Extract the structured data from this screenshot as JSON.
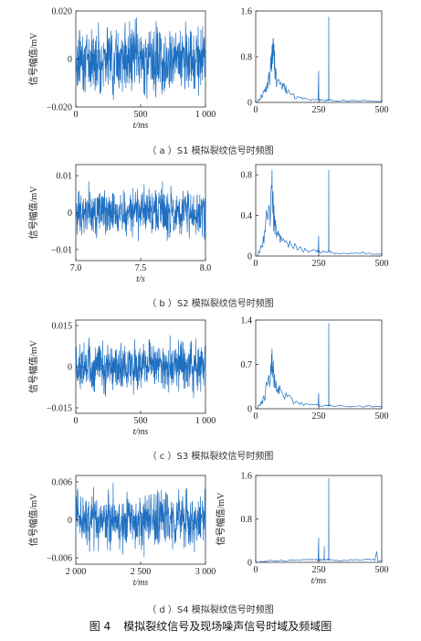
{
  "figure_caption": {
    "number": "图 4",
    "text": "模拟裂纹信号及现场噪声信号时域及频域图"
  },
  "subcaptions": [
    "（ a ）S1 模拟裂纹信号时频图",
    "（ b ）S2 模拟裂纹信号时频图",
    "（ c ）S3 模拟裂纹信号时频图",
    "（ d ）S4 模拟裂纹信号时频图"
  ],
  "colors": {
    "signal": "#1f6fc1",
    "axis": "#333333"
  },
  "chart_data": [
    {
      "id": "S1-time",
      "type": "line",
      "signal": "noise",
      "xlabel": "t/ms",
      "ylabel": "信号幅值/mV",
      "xlim": [
        0,
        1000
      ],
      "ylim": [
        -0.02,
        0.02
      ],
      "xticks": [
        0,
        500,
        1000
      ],
      "xticklabels": [
        "0",
        "500",
        "1 000"
      ],
      "yticks": [
        -0.02,
        0,
        0.02
      ],
      "yticklabels": [
        "−0.020",
        "0",
        "0.020"
      ],
      "amplitude": 0.012,
      "n": 600
    },
    {
      "id": "S1-freq",
      "type": "line",
      "signal": "spectrum",
      "xlabel": "",
      "ylabel": "",
      "xlim": [
        0,
        500
      ],
      "ylim": [
        0,
        1.6
      ],
      "xticks": [
        0,
        250,
        500
      ],
      "xticklabels": [
        "0",
        "250",
        "500"
      ],
      "yticks": [
        0,
        0.8,
        1.6
      ],
      "yticklabels": [
        "0",
        "0.8",
        "1.6"
      ],
      "x": [
        0,
        10,
        20,
        30,
        40,
        50,
        60,
        65,
        70,
        75,
        80,
        90,
        100,
        110,
        120,
        130,
        150,
        170,
        190,
        210,
        240,
        250,
        252,
        254,
        260,
        280,
        288,
        290,
        292,
        300,
        350,
        400,
        450,
        500
      ],
      "y": [
        0,
        0.05,
        0.12,
        0.2,
        0.28,
        0.45,
        0.8,
        1.0,
        1.12,
        0.9,
        0.6,
        0.4,
        0.35,
        0.28,
        0.3,
        0.22,
        0.15,
        0.1,
        0.08,
        0.06,
        0.05,
        0.55,
        0.05,
        0.05,
        0.04,
        0.04,
        0.05,
        1.5,
        0.05,
        0.04,
        0.04,
        0.03,
        0.03,
        0.02
      ]
    },
    {
      "id": "S2-time",
      "type": "line",
      "signal": "noise",
      "xlabel": "t/s",
      "ylabel": "信号幅值/mV",
      "xlim": [
        7.0,
        8.0
      ],
      "ylim": [
        -0.013,
        0.013
      ],
      "xticks": [
        7.0,
        7.5,
        8.0
      ],
      "xticklabels": [
        "7.0",
        "7.5",
        "8.0"
      ],
      "yticks": [
        -0.01,
        0,
        0.01
      ],
      "yticklabels": [
        "−0.01",
        "0",
        "0.01"
      ],
      "amplitude": 0.006,
      "n": 600
    },
    {
      "id": "S2-freq",
      "type": "line",
      "signal": "spectrum",
      "xlabel": "",
      "ylabel": "",
      "xlim": [
        0,
        500
      ],
      "ylim": [
        0,
        0.9
      ],
      "xticks": [
        0,
        250,
        500
      ],
      "xticklabels": [
        "0",
        "250",
        "500"
      ],
      "yticks": [
        0,
        0.4,
        0.8
      ],
      "yticklabels": [
        "0",
        "0.4",
        "0.8"
      ],
      "x": [
        0,
        10,
        20,
        30,
        40,
        50,
        60,
        65,
        70,
        75,
        80,
        90,
        100,
        120,
        140,
        160,
        180,
        200,
        240,
        250,
        252,
        254,
        280,
        288,
        290,
        292,
        300,
        350,
        400,
        450,
        500
      ],
      "y": [
        0,
        0.04,
        0.1,
        0.2,
        0.35,
        0.45,
        0.6,
        0.85,
        0.5,
        0.4,
        0.3,
        0.25,
        0.2,
        0.15,
        0.12,
        0.1,
        0.08,
        0.06,
        0.05,
        0.2,
        0.05,
        0.04,
        0.04,
        0.05,
        0.85,
        0.05,
        0.04,
        0.03,
        0.03,
        0.03,
        0.02
      ]
    },
    {
      "id": "S3-time",
      "type": "line",
      "signal": "noise",
      "xlabel": "t/ms",
      "ylabel": "信号幅值/mV",
      "xlim": [
        0,
        1000
      ],
      "ylim": [
        -0.017,
        0.017
      ],
      "xticks": [
        0,
        500,
        1000
      ],
      "xticklabels": [
        "0",
        "500",
        "1 000"
      ],
      "yticks": [
        -0.015,
        0,
        0.015
      ],
      "yticklabels": [
        "−0.015",
        "0",
        "0.015"
      ],
      "amplitude": 0.008,
      "n": 600
    },
    {
      "id": "S3-freq",
      "type": "line",
      "signal": "spectrum",
      "xlabel": "",
      "ylabel": "",
      "xlim": [
        0,
        500
      ],
      "ylim": [
        0,
        1.4
      ],
      "xticks": [
        0,
        250,
        500
      ],
      "xticklabels": [
        "0",
        "250",
        "500"
      ],
      "yticks": [
        0,
        0.7,
        1.4
      ],
      "yticklabels": [
        "0",
        "0.7",
        "1.4"
      ],
      "x": [
        0,
        10,
        20,
        30,
        40,
        50,
        60,
        65,
        70,
        75,
        80,
        90,
        100,
        120,
        140,
        160,
        180,
        200,
        240,
        250,
        252,
        254,
        280,
        288,
        290,
        292,
        300,
        350,
        400,
        450,
        500
      ],
      "y": [
        0,
        0.05,
        0.1,
        0.2,
        0.35,
        0.5,
        0.7,
        0.95,
        0.75,
        0.55,
        0.45,
        0.35,
        0.3,
        0.25,
        0.18,
        0.12,
        0.1,
        0.08,
        0.06,
        0.25,
        0.06,
        0.05,
        0.05,
        0.06,
        1.35,
        0.06,
        0.05,
        0.04,
        0.04,
        0.05,
        0.03
      ]
    },
    {
      "id": "S4-time",
      "type": "line",
      "signal": "noise",
      "xlabel": "t/ms",
      "ylabel": "信号幅值/mV",
      "xlim": [
        2000,
        3000
      ],
      "ylim": [
        -0.007,
        0.007
      ],
      "xticks": [
        2000,
        2500,
        3000
      ],
      "xticklabels": [
        "2 000",
        "2 500",
        "3 000"
      ],
      "yticks": [
        -0.006,
        0,
        0.006
      ],
      "yticklabels": [
        "−0.006",
        "0",
        "0.006"
      ],
      "amplitude": 0.004,
      "n": 600
    },
    {
      "id": "S4-freq",
      "type": "line",
      "signal": "spectrum",
      "xlabel": "t/ms",
      "ylabel": "信号幅值/mV",
      "xlim": [
        0,
        500
      ],
      "ylim": [
        0,
        1.6
      ],
      "xticks": [
        0,
        250,
        500
      ],
      "xticklabels": [
        "0",
        "250",
        "500"
      ],
      "yticks": [
        0,
        0.8,
        1.6
      ],
      "yticklabels": [
        "0",
        "0.8",
        "1.6"
      ],
      "x": [
        0,
        20,
        50,
        100,
        150,
        200,
        240,
        250,
        252,
        254,
        260,
        270,
        272,
        274,
        285,
        288,
        290,
        292,
        300,
        350,
        400,
        450,
        480,
        500
      ],
      "y": [
        0,
        0.02,
        0.03,
        0.04,
        0.04,
        0.05,
        0.05,
        0.45,
        0.05,
        0.05,
        0.05,
        0.05,
        0.3,
        0.05,
        0.05,
        0.05,
        1.55,
        0.05,
        0.05,
        0.04,
        0.05,
        0.06,
        0.2,
        0.03
      ]
    }
  ]
}
